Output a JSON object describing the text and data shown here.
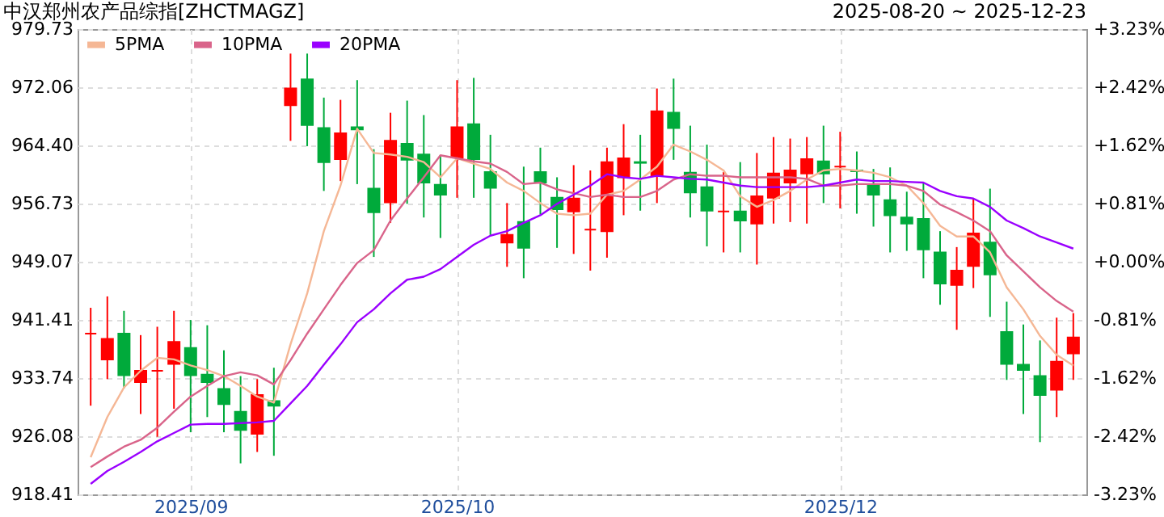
{
  "chart_data": {
    "type": "candlestick",
    "title": "中汉郑州农产品综指[ZHCTMAGZ]",
    "subtitle": "2025-08-20 ~ 2025-12-23",
    "categories": [
      null,
      null,
      null,
      null,
      null,
      null,
      "2025/09",
      null,
      null,
      null,
      null,
      null,
      null,
      null,
      null,
      null,
      null,
      null,
      null,
      null,
      null,
      null,
      "2025/10",
      null,
      null,
      null,
      null,
      null,
      null,
      null,
      null,
      null,
      null,
      null,
      null,
      null,
      null,
      null,
      null,
      null,
      null,
      null,
      null,
      null,
      null,
      "2025/12",
      null,
      null,
      null,
      null,
      null,
      null,
      null,
      null,
      null,
      null,
      null,
      null,
      null,
      null
    ],
    "ohlc": [
      [
        939.6,
        943.0,
        930.1,
        939.6
      ],
      [
        936.2,
        944.5,
        933.6,
        938.9
      ],
      [
        939.6,
        942.6,
        932.4,
        934.1
      ],
      [
        933.2,
        939.4,
        929.0,
        934.7
      ],
      [
        934.7,
        940.5,
        926.0,
        934.7
      ],
      [
        935.6,
        942.6,
        929.7,
        938.5
      ],
      [
        937.7,
        941.4,
        926.6,
        934.1
      ],
      [
        934.2,
        940.7,
        928.6,
        933.2
      ],
      [
        932.3,
        937.4,
        926.6,
        930.3
      ],
      [
        929.3,
        934.0,
        922.5,
        926.9
      ],
      [
        926.4,
        933.6,
        924.0,
        931.5
      ],
      [
        930.7,
        935.1,
        923.5,
        930.1
      ],
      [
        969.7,
        976.5,
        965.0,
        971.9
      ],
      [
        973.1,
        976.5,
        964.3,
        967.1
      ],
      [
        966.7,
        970.7,
        958.4,
        962.2
      ],
      [
        962.6,
        970.4,
        959.7,
        966.0
      ],
      [
        966.8,
        973.0,
        959.3,
        966.5
      ],
      [
        958.7,
        963.9,
        949.7,
        955.6
      ],
      [
        956.9,
        968.7,
        954.2,
        965.0
      ],
      [
        964.6,
        970.3,
        956.7,
        962.5
      ],
      [
        963.2,
        968.4,
        954.9,
        959.5
      ],
      [
        959.2,
        963.1,
        952.2,
        957.9
      ],
      [
        962.8,
        973.0,
        957.5,
        966.8
      ],
      [
        967.2,
        973.3,
        957.5,
        962.6
      ],
      [
        960.9,
        965.8,
        952.6,
        958.8
      ],
      [
        951.6,
        956.8,
        948.4,
        952.6
      ],
      [
        954.3,
        961.6,
        946.9,
        950.9
      ],
      [
        960.9,
        964.1,
        955.3,
        959.5
      ],
      [
        957.5,
        960.2,
        950.9,
        956.0
      ],
      [
        955.7,
        961.8,
        950.1,
        957.4
      ],
      [
        953.3,
        961.1,
        947.9,
        953.3
      ],
      [
        953.1,
        964.1,
        949.6,
        962.2
      ],
      [
        960.2,
        967.2,
        955.2,
        962.7
      ],
      [
        962.2,
        965.8,
        955.8,
        962.1
      ],
      [
        960.4,
        971.9,
        956.8,
        968.9
      ],
      [
        968.7,
        973.2,
        962.5,
        966.7
      ],
      [
        960.8,
        967.0,
        954.9,
        958.2
      ],
      [
        958.9,
        964.5,
        951.1,
        955.8
      ],
      [
        955.7,
        960.9,
        950.3,
        955.7
      ],
      [
        955.7,
        962.2,
        950.3,
        954.5
      ],
      [
        954.1,
        963.4,
        948.7,
        957.7
      ],
      [
        957.5,
        965.5,
        954.1,
        960.7
      ],
      [
        959.5,
        965.3,
        954.3,
        961.1
      ],
      [
        960.7,
        965.5,
        954.1,
        962.6
      ],
      [
        962.3,
        967.0,
        956.8,
        960.7
      ],
      [
        961.6,
        966.2,
        956.1,
        961.6
      ],
      [
        961.1,
        963.6,
        955.4,
        961.0
      ],
      [
        959.2,
        961.3,
        953.7,
        957.9
      ],
      [
        957.2,
        961.5,
        950.3,
        955.2
      ],
      [
        954.9,
        958.3,
        950.5,
        954.1
      ],
      [
        954.7,
        959.5,
        946.9,
        950.7
      ],
      [
        950.3,
        953.1,
        943.4,
        946.2
      ],
      [
        946.0,
        951.0,
        940.1,
        947.9
      ],
      [
        948.5,
        957.4,
        945.6,
        952.8
      ],
      [
        951.6,
        958.7,
        941.8,
        947.4
      ],
      [
        939.8,
        943.8,
        933.5,
        935.6
      ],
      [
        935.5,
        940.8,
        929.0,
        934.8
      ],
      [
        934.0,
        938.7,
        925.3,
        931.5
      ],
      [
        932.2,
        941.7,
        928.6,
        935.9
      ],
      [
        937.0,
        942.3,
        933.5,
        939.1
      ]
    ],
    "colors": [
      "#ff0000",
      "#ff0000",
      "#00aa3b",
      "#ff0000",
      "#ff0000",
      "#ff0000",
      "#00aa3b",
      "#00aa3b",
      "#00aa3b",
      "#00aa3b",
      "#ff0000",
      "#00aa3b",
      "#ff0000",
      "#00aa3b",
      "#00aa3b",
      "#ff0000",
      "#00aa3b",
      "#00aa3b",
      "#ff0000",
      "#00aa3b",
      "#00aa3b",
      "#00aa3b",
      "#ff0000",
      "#00aa3b",
      "#00aa3b",
      "#ff0000",
      "#00aa3b",
      "#00aa3b",
      "#00aa3b",
      "#ff0000",
      "#ff0000",
      "#ff0000",
      "#ff0000",
      "#00aa3b",
      "#ff0000",
      "#00aa3b",
      "#00aa3b",
      "#00aa3b",
      "#ff0000",
      "#00aa3b",
      "#ff0000",
      "#ff0000",
      "#ff0000",
      "#ff0000",
      "#00aa3b",
      "#ff0000",
      "#00aa3b",
      "#00aa3b",
      "#00aa3b",
      "#00aa3b",
      "#00aa3b",
      "#00aa3b",
      "#ff0000",
      "#ff0000",
      "#00aa3b",
      "#00aa3b",
      "#00aa3b",
      "#00aa3b",
      "#ff0000",
      "#ff0000"
    ],
    "series": [
      {
        "name": "5PMA",
        "type": "line",
        "color": "#f5b795",
        "values": [
          923.3,
          928.6,
          932.5,
          934.7,
          936.4,
          936.2,
          935.4,
          934.8,
          934.0,
          932.7,
          931.3,
          930.5,
          938.2,
          944.9,
          953.1,
          959.1,
          966.6,
          963.4,
          963.2,
          962.9,
          962.2,
          960.2,
          962.7,
          962.0,
          961.3,
          959.5,
          958.4,
          956.8,
          955.4,
          955.2,
          955.4,
          957.9,
          958.4,
          959.9,
          961.6,
          964.5,
          963.6,
          962.5,
          961.1,
          957.7,
          956.3,
          957.2,
          958.4,
          959.9,
          961.1,
          961.3,
          961.1,
          960.8,
          960.2,
          959.1,
          956.8,
          953.8,
          952.4,
          952.4,
          950.3,
          945.7,
          942.8,
          939.3,
          936.8,
          935.4
        ]
      },
      {
        "name": "10PMA",
        "type": "line",
        "color": "#d9648a",
        "values": [
          922.0,
          923.4,
          924.7,
          925.6,
          927.2,
          929.3,
          931.3,
          932.7,
          934.0,
          934.5,
          934.1,
          932.9,
          936.1,
          939.6,
          942.8,
          946.0,
          948.9,
          950.6,
          954.5,
          957.4,
          960.2,
          963.1,
          962.7,
          962.3,
          962.0,
          960.9,
          959.3,
          959.5,
          958.6,
          958.1,
          957.6,
          957.9,
          957.6,
          957.6,
          958.4,
          959.9,
          960.6,
          960.4,
          960.4,
          960.2,
          960.2,
          960.2,
          960.2,
          960.0,
          959.1,
          959.1,
          959.3,
          959.3,
          959.3,
          959.1,
          958.4,
          956.6,
          955.6,
          954.5,
          953.1,
          949.9,
          947.8,
          945.7,
          943.9,
          942.5
        ]
      },
      {
        "name": "20PMA",
        "type": "line",
        "color": "#9a00ff",
        "values": [
          919.8,
          921.5,
          922.7,
          924.0,
          925.4,
          926.5,
          927.6,
          927.7,
          927.7,
          927.8,
          927.9,
          928.1,
          930.4,
          932.7,
          935.5,
          938.2,
          941.1,
          942.8,
          944.9,
          946.7,
          947.1,
          948.1,
          949.7,
          951.3,
          952.5,
          953.1,
          954.2,
          955.2,
          956.7,
          957.9,
          959.1,
          960.6,
          960.2,
          960.0,
          960.4,
          960.2,
          960.0,
          959.9,
          959.5,
          959.1,
          958.9,
          958.9,
          958.9,
          958.9,
          959.1,
          959.5,
          959.9,
          959.7,
          959.7,
          959.6,
          959.5,
          958.4,
          957.7,
          957.4,
          956.3,
          954.5,
          953.5,
          952.4,
          951.6,
          950.8
        ]
      }
    ],
    "ylim": [
      918.41,
      979.73
    ],
    "yticks": [
      918.41,
      926.08,
      933.74,
      941.41,
      949.07,
      956.73,
      {
        "value": 964.4,
        "label": "964.40"
      },
      972.06,
      979.73
    ],
    "y2lim": [
      -3.23,
      3.23
    ],
    "y2ticks": [
      {
        "value": -3.23,
        "label": "-3.23%"
      },
      {
        "value": -2.42,
        "label": "-2.42%"
      },
      {
        "value": -1.62,
        "label": "-1.62%"
      },
      {
        "value": -0.81,
        "label": "-0.81%"
      },
      {
        "value": 0,
        "label": "+0.00%"
      },
      {
        "value": 0.81,
        "label": "+0.81%"
      },
      {
        "value": 1.62,
        "label": "+1.62%"
      },
      {
        "value": 2.42,
        "label": "+2.42%"
      },
      {
        "value": 3.23,
        "label": "+3.23%"
      }
    ],
    "grid": true,
    "legend": "top left"
  }
}
